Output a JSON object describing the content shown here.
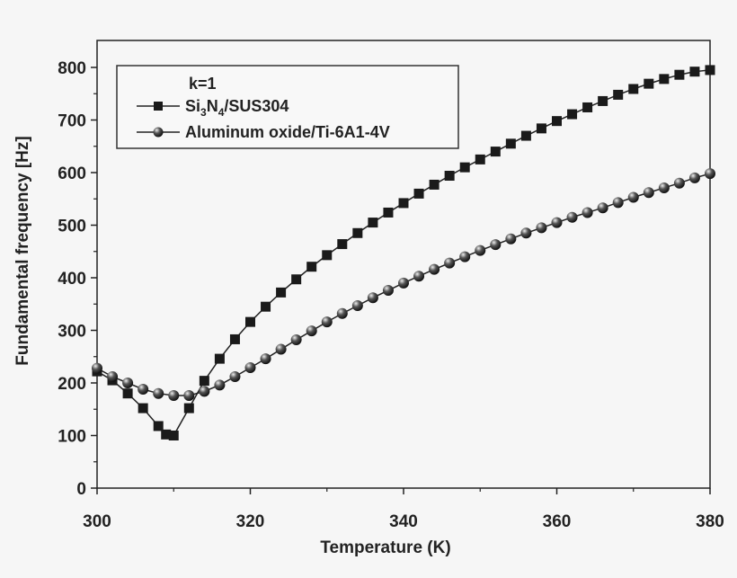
{
  "chart_data": {
    "type": "line",
    "title": "",
    "xlabel": "Temperature (K)",
    "ylabel": "Fundamental frequency [Hz]",
    "xlim": [
      300,
      380
    ],
    "ylim": [
      0,
      850
    ],
    "xticks": [
      300,
      320,
      340,
      360,
      380
    ],
    "yticks": [
      0,
      100,
      200,
      300,
      400,
      500,
      600,
      700,
      800
    ],
    "grid": false,
    "legend": {
      "placement": "top-left",
      "title": "k=1",
      "entries": [
        {
          "label_main": "Si",
          "sub1": "3",
          "mid": "N",
          "sub2": "4",
          "tail": "/SUS304"
        },
        {
          "label": "Aluminum oxide/Ti-6A1-4V"
        }
      ]
    },
    "series": [
      {
        "name": "Si3N4/SUS304",
        "marker": "square",
        "x": [
          300,
          302,
          304,
          306,
          308,
          309,
          310,
          312,
          314,
          316,
          318,
          320,
          322,
          324,
          326,
          328,
          330,
          332,
          334,
          336,
          338,
          340,
          342,
          344,
          346,
          348,
          350,
          352,
          354,
          356,
          358,
          360,
          362,
          364,
          366,
          368,
          370,
          372,
          374,
          376,
          378,
          380
        ],
        "y": [
          222,
          205,
          180,
          152,
          118,
          102,
          100,
          152,
          204,
          246,
          283,
          316,
          345,
          372,
          397,
          421,
          443,
          464,
          485,
          505,
          524,
          542,
          560,
          577,
          594,
          610,
          625,
          640,
          655,
          670,
          684,
          698,
          711,
          724,
          736,
          748,
          759,
          769,
          778,
          786,
          792,
          795
        ]
      },
      {
        "name": "Aluminum oxide/Ti-6A1-4V",
        "marker": "sphere",
        "x": [
          300,
          302,
          304,
          306,
          308,
          310,
          312,
          314,
          316,
          318,
          320,
          322,
          324,
          326,
          328,
          330,
          332,
          334,
          336,
          338,
          340,
          342,
          344,
          346,
          348,
          350,
          352,
          354,
          356,
          358,
          360,
          362,
          364,
          366,
          368,
          370,
          372,
          374,
          376,
          378,
          380
        ],
        "y": [
          228,
          212,
          200,
          188,
          180,
          176,
          176,
          184,
          196,
          212,
          229,
          246,
          264,
          282,
          299,
          316,
          332,
          347,
          362,
          376,
          390,
          403,
          416,
          428,
          440,
          452,
          463,
          474,
          485,
          495,
          505,
          515,
          524,
          533,
          543,
          553,
          562,
          571,
          580,
          590,
          598
        ]
      }
    ]
  }
}
